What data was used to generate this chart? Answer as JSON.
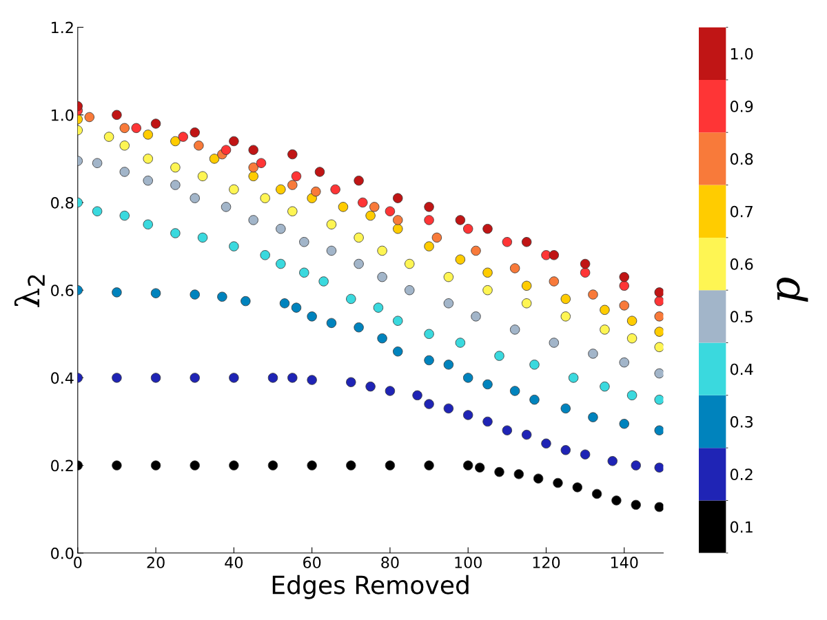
{
  "chart_data": {
    "type": "scatter",
    "xlabel": "Edges Removed",
    "ylabel": "λ$_{2}$",
    "clabel": "p",
    "marker": "circle",
    "grid": false,
    "xlim": [
      0,
      150
    ],
    "xticks": [
      0,
      20,
      40,
      60,
      80,
      100,
      120,
      140
    ],
    "ylim": [
      0,
      1.2
    ],
    "yticks": [
      {
        "value": 0,
        "label": "0.0"
      },
      {
        "value": 0.2,
        "label": "0.2"
      },
      {
        "value": 0.4,
        "label": "0.4"
      },
      {
        "value": 0.6,
        "label": "0.6"
      },
      {
        "value": 0.8,
        "label": "0.8"
      },
      {
        "value": 1,
        "label": "1.0"
      },
      {
        "value": 1.2,
        "label": "1.2"
      }
    ],
    "clim": [
      0.05,
      1.05
    ],
    "cticks": [
      0.1,
      0.2,
      0.3,
      0.4,
      0.5,
      0.6,
      0.7,
      0.8,
      0.9,
      {
        "value": 1,
        "label": "1.0"
      }
    ],
    "series": [
      {
        "color": "#000000",
        "x": [
          0,
          10,
          20,
          30,
          40,
          50,
          60,
          70,
          80,
          90,
          100,
          103,
          108,
          113,
          118,
          123,
          128,
          133,
          138,
          143,
          149
        ],
        "values": [
          0.2,
          0.2,
          0.2,
          0.2,
          0.2,
          0.2,
          0.2,
          0.2,
          0.2,
          0.2,
          0.2,
          0.195,
          0.185,
          0.18,
          0.17,
          0.16,
          0.15,
          0.135,
          0.12,
          0.11,
          0.105
        ]
      },
      {
        "color": "#1f24b5",
        "x": [
          0,
          10,
          20,
          30,
          40,
          50,
          55,
          60,
          70,
          75,
          80,
          87,
          90,
          95,
          100,
          105,
          110,
          115,
          120,
          125,
          130,
          137,
          143,
          149
        ],
        "values": [
          0.4,
          0.4,
          0.4,
          0.4,
          0.4,
          0.4,
          0.4,
          0.395,
          0.39,
          0.38,
          0.37,
          0.36,
          0.34,
          0.33,
          0.315,
          0.3,
          0.28,
          0.27,
          0.25,
          0.235,
          0.225,
          0.21,
          0.2,
          0.195
        ]
      },
      {
        "color": "#0083bd",
        "x": [
          0,
          10,
          20,
          30,
          37,
          43,
          53,
          56,
          60,
          65,
          72,
          78,
          82,
          90,
          95,
          100,
          105,
          112,
          117,
          125,
          132,
          140,
          149
        ],
        "values": [
          0.6,
          0.595,
          0.593,
          0.59,
          0.585,
          0.575,
          0.57,
          0.56,
          0.54,
          0.525,
          0.515,
          0.49,
          0.46,
          0.44,
          0.43,
          0.4,
          0.385,
          0.37,
          0.35,
          0.33,
          0.31,
          0.295,
          0.28
        ]
      },
      {
        "color": "#3ad9de",
        "x": [
          0,
          5,
          12,
          18,
          25,
          32,
          40,
          48,
          52,
          58,
          63,
          70,
          77,
          82,
          90,
          98,
          108,
          117,
          127,
          135,
          142,
          149
        ],
        "values": [
          0.8,
          0.78,
          0.77,
          0.75,
          0.73,
          0.72,
          0.7,
          0.68,
          0.66,
          0.64,
          0.62,
          0.58,
          0.56,
          0.53,
          0.5,
          0.48,
          0.45,
          0.43,
          0.4,
          0.38,
          0.36,
          0.35
        ]
      },
      {
        "color": "#a2b5c9",
        "x": [
          0,
          5,
          12,
          18,
          25,
          30,
          38,
          45,
          52,
          58,
          65,
          72,
          78,
          85,
          95,
          102,
          112,
          122,
          132,
          140,
          149
        ],
        "values": [
          0.895,
          0.89,
          0.87,
          0.85,
          0.84,
          0.81,
          0.79,
          0.76,
          0.74,
          0.71,
          0.69,
          0.66,
          0.63,
          0.6,
          0.57,
          0.54,
          0.51,
          0.48,
          0.455,
          0.435,
          0.41
        ]
      },
      {
        "color": "#fef553",
        "x": [
          0,
          8,
          12,
          18,
          25,
          32,
          40,
          48,
          55,
          65,
          72,
          78,
          85,
          95,
          105,
          115,
          125,
          135,
          142,
          149
        ],
        "values": [
          0.965,
          0.95,
          0.93,
          0.9,
          0.88,
          0.86,
          0.83,
          0.81,
          0.78,
          0.75,
          0.72,
          0.69,
          0.66,
          0.63,
          0.6,
          0.57,
          0.54,
          0.51,
          0.49,
          0.47
        ]
      },
      {
        "color": "#ffcc00",
        "x": [
          0,
          18,
          25,
          35,
          45,
          52,
          60,
          68,
          75,
          82,
          90,
          98,
          105,
          115,
          125,
          135,
          142,
          149
        ],
        "values": [
          0.99,
          0.955,
          0.94,
          0.9,
          0.86,
          0.83,
          0.81,
          0.79,
          0.77,
          0.74,
          0.7,
          0.67,
          0.64,
          0.61,
          0.58,
          0.555,
          0.53,
          0.505
        ]
      },
      {
        "color": "#f87a3a",
        "x": [
          3,
          12,
          31,
          37,
          45,
          55,
          61,
          76,
          82,
          92,
          102,
          112,
          122,
          132,
          140,
          149
        ],
        "values": [
          0.995,
          0.97,
          0.93,
          0.91,
          0.88,
          0.84,
          0.825,
          0.79,
          0.76,
          0.72,
          0.69,
          0.65,
          0.62,
          0.59,
          0.565,
          0.54
        ]
      },
      {
        "color": "#fe3536",
        "x": [
          0,
          15,
          27,
          38,
          47,
          56,
          66,
          73,
          80,
          90,
          100,
          110,
          120,
          130,
          140,
          149
        ],
        "values": [
          1.01,
          0.97,
          0.95,
          0.92,
          0.89,
          0.86,
          0.83,
          0.8,
          0.78,
          0.76,
          0.74,
          0.71,
          0.68,
          0.64,
          0.61,
          0.575
        ]
      },
      {
        "color": "#c01515",
        "x": [
          0,
          10,
          20,
          30,
          40,
          45,
          55,
          62,
          72,
          82,
          90,
          98,
          105,
          115,
          122,
          130,
          140,
          149
        ],
        "values": [
          1.02,
          1.0,
          0.98,
          0.96,
          0.94,
          0.92,
          0.91,
          0.87,
          0.85,
          0.81,
          0.79,
          0.76,
          0.74,
          0.71,
          0.68,
          0.66,
          0.63,
          0.595
        ]
      }
    ]
  }
}
